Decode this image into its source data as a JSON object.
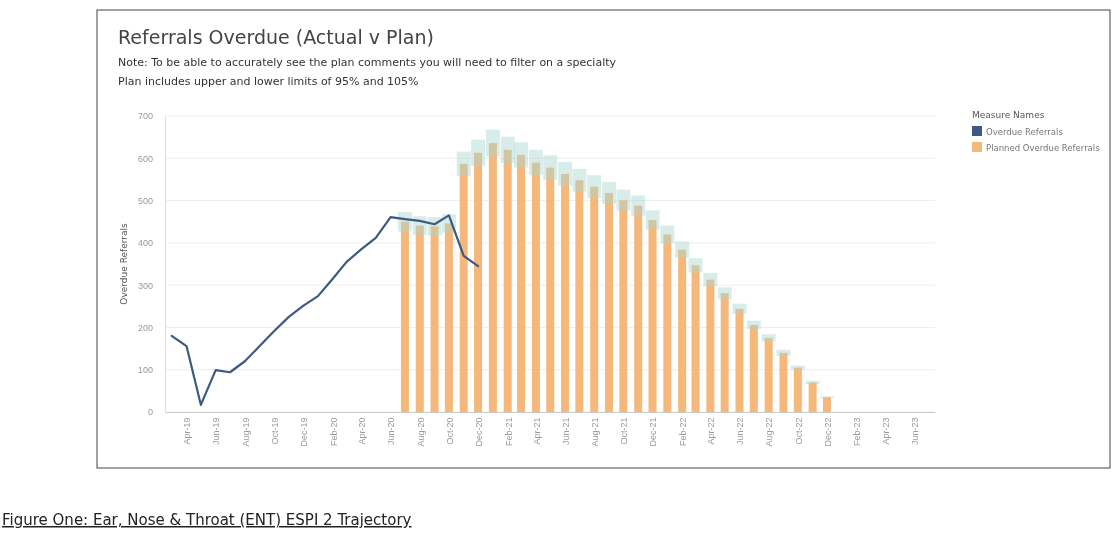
{
  "chart_data": {
    "type": "bar",
    "title": "Referrals Overdue (Actual v Plan)",
    "subtitle": "Note: To be able to accurately see the plan comments you will need to filter on a specialty\nPlan includes upper and lower limits of 95% and 105%",
    "ylabel": "Overdue Referrals",
    "legend_title": "Measure Names",
    "annotations": [
      "Figure One: Ear, Nose & Throat (ENT) ESPI 2 Trajectory"
    ],
    "xlim": [
      "2019-02-15",
      "2023-07-15"
    ],
    "xticks": [
      {
        "value": "2019-04",
        "label": "Apr-19"
      },
      {
        "value": "2019-06",
        "label": "Jun-19"
      },
      {
        "value": "2019-08",
        "label": "Aug-19"
      },
      {
        "value": "2019-10",
        "label": "Oct-19"
      },
      {
        "value": "2019-12",
        "label": "Dec-19"
      },
      {
        "value": "2020-02",
        "label": "Feb-20"
      },
      {
        "value": "2020-04",
        "label": "Apr-20"
      },
      {
        "value": "2020-06",
        "label": "Jun-20"
      },
      {
        "value": "2020-08",
        "label": "Aug-20"
      },
      {
        "value": "2020-10",
        "label": "Oct-20"
      },
      {
        "value": "2020-12",
        "label": "Dec-20"
      },
      {
        "value": "2021-02",
        "label": "Feb-21"
      },
      {
        "value": "2021-04",
        "label": "Apr-21"
      },
      {
        "value": "2021-06",
        "label": "Jun-21"
      },
      {
        "value": "2021-08",
        "label": "Aug-21"
      },
      {
        "value": "2021-10",
        "label": "Oct-21"
      },
      {
        "value": "2021-12",
        "label": "Dec-21"
      },
      {
        "value": "2022-02",
        "label": "Feb-22"
      },
      {
        "value": "2022-04",
        "label": "Apr-22"
      },
      {
        "value": "2022-06",
        "label": "Jun-22"
      },
      {
        "value": "2022-08",
        "label": "Aug-22"
      },
      {
        "value": "2022-10",
        "label": "Oct-22"
      },
      {
        "value": "2022-12",
        "label": "Dec-22"
      },
      {
        "value": "2023-02",
        "label": "Feb-23"
      },
      {
        "value": "2023-04",
        "label": "Apr-23"
      },
      {
        "value": "2023-06",
        "label": "Jun-23"
      }
    ],
    "ylim": [
      0,
      700
    ],
    "yticks": [
      0,
      100,
      200,
      300,
      400,
      500,
      600,
      700
    ],
    "grid": "y",
    "legend": "right",
    "series": [
      {
        "name": "Planned Overdue Referrals",
        "color": "#f5b77a",
        "x": [
          "2020-07",
          "2020-08",
          "2020-09",
          "2020-10",
          "2020-11",
          "2020-12",
          "2021-01",
          "2021-02",
          "2021-03",
          "2021-04",
          "2021-05",
          "2021-06",
          "2021-07",
          "2021-08",
          "2021-09",
          "2021-10",
          "2021-11",
          "2021-12",
          "2022-01",
          "2022-02",
          "2022-03",
          "2022-04",
          "2022-05",
          "2022-06",
          "2022-07",
          "2022-08",
          "2022-09",
          "2022-10",
          "2022-11",
          "2022-12"
        ],
        "values": [
          450,
          441,
          439,
          446,
          587,
          613,
          636,
          620,
          608,
          590,
          578,
          563,
          548,
          533,
          518,
          501,
          488,
          454,
          420,
          384,
          347,
          313,
          281,
          244,
          206,
          175,
          140,
          105,
          70,
          35
        ],
        "errors": [
          23,
          22,
          22,
          22,
          29,
          31,
          32,
          31,
          30,
          30,
          29,
          28,
          27,
          27,
          26,
          25,
          24,
          23,
          21,
          19,
          17,
          16,
          14,
          12,
          10,
          9,
          7,
          5,
          4,
          2
        ]
      },
      {
        "name": "Overdue Referrals",
        "type": "line",
        "color": "#3d5a80",
        "x": [
          "2019-03",
          "2019-04",
          "2019-05",
          "2019-06",
          "2019-07",
          "2019-08",
          "2019-09",
          "2019-10",
          "2019-11",
          "2019-12",
          "2020-01",
          "2020-02",
          "2020-03",
          "2020-04",
          "2020-05",
          "2020-06",
          "2020-07",
          "2020-08",
          "2020-09",
          "2020-10",
          "2020-11",
          "2020-12"
        ],
        "values": [
          180,
          156,
          17,
          99,
          94,
          120,
          156,
          191,
          225,
          251,
          274,
          315,
          355,
          385,
          412,
          461,
          456,
          452,
          444,
          465,
          369,
          345
        ]
      }
    ]
  }
}
